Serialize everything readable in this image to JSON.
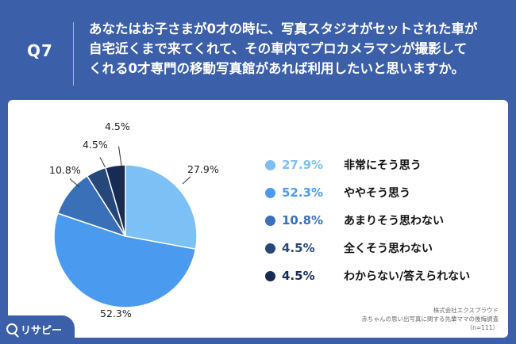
{
  "header": {
    "question_number": "Q7",
    "question_lines": [
      "あなたはお子さまが0才の時に、写真スタジオがセットされた車が",
      "自宅近くまで来てくれて、その車内でプロカメラマンが撮影して",
      "くれる0才専門の移動写真館があれば利用したいと思いますか。"
    ]
  },
  "chart_data": {
    "type": "pie",
    "categories": [
      "非常にそう思う",
      "ややそう思う",
      "あまりそう思わない",
      "全くそう思わない",
      "わからない/答えられない"
    ],
    "values": [
      27.9,
      52.3,
      10.8,
      4.5,
      4.5
    ],
    "value_labels": [
      "27.9%",
      "52.3%",
      "10.8%",
      "4.5%",
      "4.5%"
    ],
    "colors": [
      "#7cc0f5",
      "#4a9af0",
      "#3a70b8",
      "#26477a",
      "#152d55"
    ],
    "legend_position": "right"
  },
  "source": {
    "company": "株式会社エクスプラウド",
    "survey": "赤ちゃんの思い出写真に関する先輩ママの後悔調査",
    "n": "（n=111）"
  },
  "logo": {
    "text": "リサピー",
    "icon": "search-icon"
  }
}
